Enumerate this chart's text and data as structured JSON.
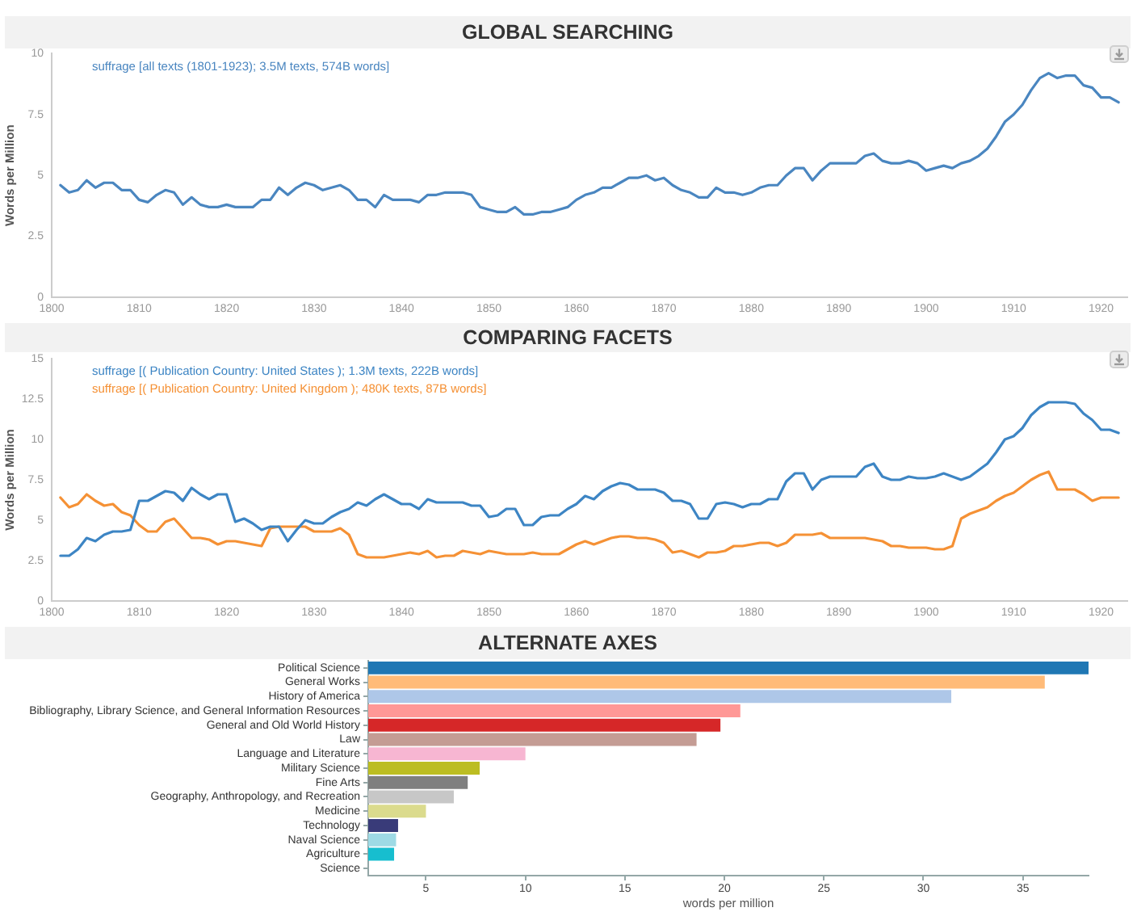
{
  "chart_data": [
    {
      "type": "line",
      "title": "GLOBAL SEARCHING",
      "ylabel": "Words per Million",
      "legend": "top left",
      "grid": false,
      "x": [
        1801,
        1802,
        1803,
        1804,
        1805,
        1806,
        1807,
        1808,
        1809,
        1810,
        1811,
        1812,
        1813,
        1814,
        1815,
        1816,
        1817,
        1818,
        1819,
        1820,
        1821,
        1822,
        1823,
        1824,
        1825,
        1826,
        1827,
        1828,
        1829,
        1830,
        1831,
        1832,
        1833,
        1834,
        1835,
        1836,
        1837,
        1838,
        1839,
        1840,
        1841,
        1842,
        1843,
        1844,
        1845,
        1846,
        1847,
        1848,
        1849,
        1850,
        1851,
        1852,
        1853,
        1854,
        1855,
        1856,
        1857,
        1858,
        1859,
        1860,
        1861,
        1862,
        1863,
        1864,
        1865,
        1866,
        1867,
        1868,
        1869,
        1870,
        1871,
        1872,
        1873,
        1874,
        1875,
        1876,
        1877,
        1878,
        1879,
        1880,
        1881,
        1882,
        1883,
        1884,
        1885,
        1886,
        1887,
        1888,
        1889,
        1890,
        1891,
        1892,
        1893,
        1894,
        1895,
        1896,
        1897,
        1898,
        1899,
        1900,
        1901,
        1902,
        1903,
        1904,
        1905,
        1906,
        1907,
        1908,
        1909,
        1910,
        1911,
        1912,
        1913,
        1914,
        1915,
        1916,
        1917,
        1918,
        1919,
        1920,
        1921,
        1922
      ],
      "series": [
        {
          "name": "suffrage [all texts (1801-1923); 3.5M texts, 574B words]",
          "color": "#4a86c0",
          "values": [
            4.6,
            4.3,
            4.4,
            4.8,
            4.5,
            4.7,
            4.7,
            4.4,
            4.4,
            4.0,
            3.9,
            4.2,
            4.4,
            4.3,
            3.8,
            4.1,
            3.8,
            3.7,
            3.7,
            3.8,
            3.7,
            3.7,
            3.7,
            4.0,
            4.0,
            4.5,
            4.2,
            4.5,
            4.7,
            4.6,
            4.4,
            4.5,
            4.6,
            4.4,
            4.0,
            4.0,
            3.7,
            4.2,
            4.0,
            4.0,
            4.0,
            3.9,
            4.2,
            4.2,
            4.3,
            4.3,
            4.3,
            4.2,
            3.7,
            3.6,
            3.5,
            3.5,
            3.7,
            3.4,
            3.4,
            3.5,
            3.5,
            3.6,
            3.7,
            4.0,
            4.2,
            4.3,
            4.5,
            4.5,
            4.7,
            4.9,
            4.9,
            5.0,
            4.8,
            4.9,
            4.6,
            4.4,
            4.3,
            4.1,
            4.1,
            4.5,
            4.3,
            4.3,
            4.2,
            4.3,
            4.5,
            4.6,
            4.6,
            5.0,
            5.3,
            5.3,
            4.8,
            5.2,
            5.5,
            5.5,
            5.5,
            5.5,
            5.8,
            5.9,
            5.6,
            5.5,
            5.5,
            5.6,
            5.5,
            5.2,
            5.3,
            5.4,
            5.3,
            5.5,
            5.6,
            5.8,
            6.1,
            6.6,
            7.2,
            7.5,
            7.9,
            8.5,
            9.0,
            9.2,
            9.0,
            9.1,
            9.1,
            8.7,
            8.6,
            8.2,
            8.2,
            8.0
          ]
        }
      ],
      "xlim": [
        1800,
        1923
      ],
      "xticks": [
        1800,
        1810,
        1820,
        1830,
        1840,
        1850,
        1860,
        1870,
        1880,
        1890,
        1900,
        1910,
        1920
      ],
      "ylim": [
        0,
        10
      ],
      "yticks": [
        0,
        2.5,
        5,
        7.5,
        10
      ]
    },
    {
      "type": "line",
      "title": "COMPARING FACETS",
      "ylabel": "Words per Million",
      "legend": "top left",
      "grid": false,
      "x": [
        1801,
        1802,
        1803,
        1804,
        1805,
        1806,
        1807,
        1808,
        1809,
        1810,
        1811,
        1812,
        1813,
        1814,
        1815,
        1816,
        1817,
        1818,
        1819,
        1820,
        1821,
        1822,
        1823,
        1824,
        1825,
        1826,
        1827,
        1828,
        1829,
        1830,
        1831,
        1832,
        1833,
        1834,
        1835,
        1836,
        1837,
        1838,
        1839,
        1840,
        1841,
        1842,
        1843,
        1844,
        1845,
        1846,
        1847,
        1848,
        1849,
        1850,
        1851,
        1852,
        1853,
        1854,
        1855,
        1856,
        1857,
        1858,
        1859,
        1860,
        1861,
        1862,
        1863,
        1864,
        1865,
        1866,
        1867,
        1868,
        1869,
        1870,
        1871,
        1872,
        1873,
        1874,
        1875,
        1876,
        1877,
        1878,
        1879,
        1880,
        1881,
        1882,
        1883,
        1884,
        1885,
        1886,
        1887,
        1888,
        1889,
        1890,
        1891,
        1892,
        1893,
        1894,
        1895,
        1896,
        1897,
        1898,
        1899,
        1900,
        1901,
        1902,
        1903,
        1904,
        1905,
        1906,
        1907,
        1908,
        1909,
        1910,
        1911,
        1912,
        1913,
        1914,
        1915,
        1916,
        1917,
        1918,
        1919,
        1920,
        1921,
        1922
      ],
      "series": [
        {
          "name": "suffrage [( Publication Country: United States ); 1.3M texts, 222B words]",
          "color": "#3d85c4",
          "values": [
            2.8,
            2.8,
            3.2,
            3.9,
            3.7,
            4.1,
            4.3,
            4.3,
            4.4,
            6.2,
            6.2,
            6.5,
            6.8,
            6.7,
            6.2,
            7.0,
            6.6,
            6.3,
            6.6,
            6.6,
            4.9,
            5.1,
            4.8,
            4.4,
            4.6,
            4.6,
            3.7,
            4.4,
            5.0,
            4.8,
            4.8,
            5.2,
            5.5,
            5.7,
            6.1,
            5.9,
            6.3,
            6.6,
            6.3,
            6.0,
            6.0,
            5.7,
            6.3,
            6.1,
            6.1,
            6.1,
            6.1,
            5.9,
            5.9,
            5.2,
            5.3,
            5.7,
            5.7,
            4.7,
            4.7,
            5.2,
            5.3,
            5.3,
            5.7,
            6.0,
            6.5,
            6.3,
            6.8,
            7.1,
            7.3,
            7.2,
            6.9,
            6.9,
            6.9,
            6.7,
            6.2,
            6.2,
            6.0,
            5.1,
            5.1,
            6.0,
            6.1,
            6.0,
            5.8,
            6.0,
            6.0,
            6.3,
            6.3,
            7.4,
            7.9,
            7.9,
            6.9,
            7.5,
            7.7,
            7.7,
            7.7,
            7.7,
            8.3,
            8.5,
            7.7,
            7.5,
            7.5,
            7.7,
            7.6,
            7.6,
            7.7,
            7.9,
            7.7,
            7.5,
            7.7,
            8.1,
            8.5,
            9.2,
            10.0,
            10.2,
            10.7,
            11.5,
            12.0,
            12.3,
            12.3,
            12.3,
            12.2,
            11.6,
            11.2,
            10.6,
            10.6,
            10.4
          ]
        },
        {
          "name": "suffrage [( Publication Country: United Kingdom ); 480K texts, 87B words]",
          "color": "#f59135",
          "values": [
            6.4,
            5.8,
            6.0,
            6.6,
            6.2,
            5.9,
            6.0,
            5.5,
            5.3,
            4.7,
            4.3,
            4.3,
            4.9,
            5.1,
            4.5,
            3.9,
            3.9,
            3.8,
            3.5,
            3.7,
            3.7,
            3.6,
            3.5,
            3.4,
            4.5,
            4.6,
            4.6,
            4.6,
            4.6,
            4.3,
            4.3,
            4.3,
            4.5,
            4.1,
            2.9,
            2.7,
            2.7,
            2.7,
            2.8,
            2.9,
            3.0,
            2.9,
            3.1,
            2.7,
            2.8,
            2.8,
            3.1,
            3.0,
            2.9,
            3.1,
            3.0,
            2.9,
            2.9,
            2.9,
            3.0,
            2.9,
            2.9,
            2.9,
            3.2,
            3.5,
            3.7,
            3.5,
            3.7,
            3.9,
            4.0,
            4.0,
            3.9,
            3.9,
            3.8,
            3.6,
            3.0,
            3.1,
            2.9,
            2.7,
            3.0,
            3.0,
            3.1,
            3.4,
            3.4,
            3.5,
            3.6,
            3.6,
            3.4,
            3.6,
            4.1,
            4.1,
            4.1,
            4.2,
            3.9,
            3.9,
            3.9,
            3.9,
            3.9,
            3.8,
            3.7,
            3.4,
            3.4,
            3.3,
            3.3,
            3.3,
            3.2,
            3.2,
            3.4,
            5.1,
            5.4,
            5.6,
            5.8,
            6.2,
            6.5,
            6.7,
            7.1,
            7.5,
            7.8,
            8.0,
            6.9,
            6.9,
            6.9,
            6.6,
            6.2,
            6.4,
            6.4,
            6.4
          ]
        }
      ],
      "xlim": [
        1800,
        1923
      ],
      "xticks": [
        1800,
        1810,
        1820,
        1830,
        1840,
        1850,
        1860,
        1870,
        1880,
        1890,
        1900,
        1910,
        1920
      ],
      "ylim": [
        0,
        15
      ],
      "yticks": [
        0,
        2.5,
        5,
        7.5,
        10,
        12.5,
        15
      ]
    },
    {
      "type": "bar",
      "title": "ALTERNATE AXES",
      "xlabel": "words per million",
      "orientation": "horizontal",
      "grid": false,
      "categories": [
        "Political Science",
        "General Works",
        "History of America",
        "Bibliography, Library Science, and General Information Resources",
        "General and Old World History",
        "Law",
        "Language and Literature",
        "Military Science",
        "Fine Arts",
        "Geography, Anthropology, and Recreation",
        "Medicine",
        "Technology",
        "Naval Science",
        "Agriculture",
        "Science"
      ],
      "values": [
        38.3,
        36.1,
        31.4,
        20.8,
        19.8,
        18.6,
        10.0,
        7.7,
        7.1,
        6.4,
        5.0,
        3.6,
        3.5,
        3.4,
        2.1
      ],
      "colors": [
        "#1f77b4",
        "#ffbb78",
        "#aec7e8",
        "#ff9896",
        "#d62728",
        "#c49c94",
        "#f7b6d2",
        "#bcbd22",
        "#7f7f7f",
        "#c7c7c7",
        "#dbdb8d",
        "#393b79",
        "#9edae5",
        "#17becf",
        null
      ],
      "xlim": [
        2.1,
        38.3
      ],
      "xticks": [
        5,
        10,
        15,
        20,
        25,
        30,
        35
      ]
    }
  ]
}
